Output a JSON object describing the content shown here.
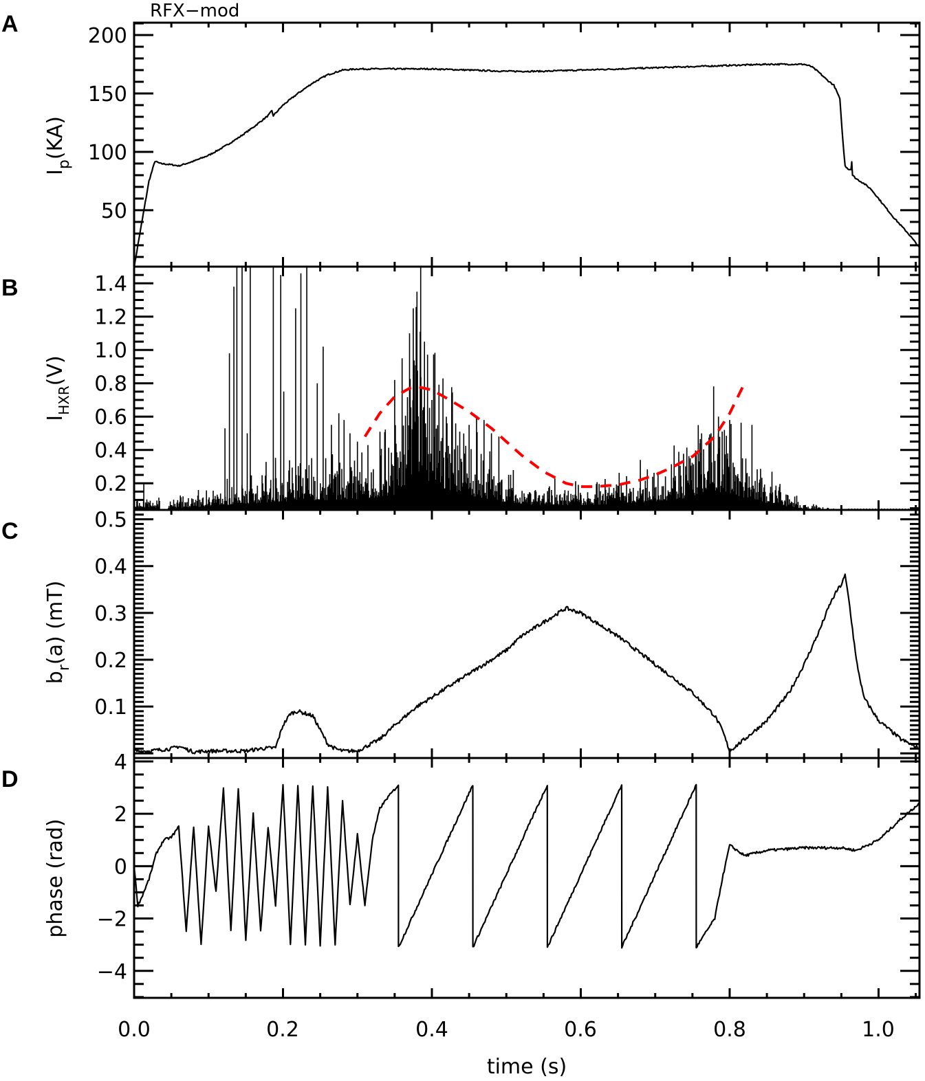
{
  "figure": {
    "title": "RFX−mod",
    "xlabel": "time (s)",
    "x_ticks": [
      "0.0",
      "0.2",
      "0.4",
      "0.6",
      "0.8",
      "1.0"
    ],
    "colors": {
      "trace": "#000000",
      "fit": "#ff0000",
      "background": "#ffffff"
    }
  },
  "panels": [
    {
      "letter": "A",
      "ylabel_main": "I",
      "ylabel_sub": "p",
      "ylabel_rest": "(KA)",
      "y_ticks": [
        "50",
        "100",
        "150",
        "200"
      ]
    },
    {
      "letter": "B",
      "ylabel_main": "I",
      "ylabel_sub": "HXR",
      "ylabel_rest": "(V)",
      "y_ticks": [
        "0.2",
        "0.4",
        "0.6",
        "0.8",
        "1.0",
        "1.2",
        "1.4"
      ]
    },
    {
      "letter": "C",
      "ylabel_main": "b",
      "ylabel_sub": "r",
      "ylabel_rest": "(a)  (mT)",
      "y_ticks": [
        "0.1",
        "0.2",
        "0.3",
        "0.4",
        "0.5"
      ]
    },
    {
      "letter": "D",
      "ylabel_main": "phase  (rad)",
      "ylabel_sub": "",
      "ylabel_rest": "",
      "y_ticks": [
        "−4",
        "−2",
        "0",
        "2",
        "4"
      ]
    }
  ],
  "chart_data": [
    {
      "type": "line",
      "panel": "A",
      "title": "RFX-mod",
      "xlabel": "time (s)",
      "ylabel": "Ip (KA)",
      "xlim": [
        0.0,
        1.055
      ],
      "ylim": [
        1.7,
        210.6
      ],
      "yticks": [
        50,
        100,
        150,
        200
      ],
      "series": [
        {
          "name": "Ip",
          "x": [
            0.0,
            0.005,
            0.02,
            0.028,
            0.035,
            0.05,
            0.06,
            0.08,
            0.1,
            0.12,
            0.14,
            0.16,
            0.18,
            0.185,
            0.187,
            0.2,
            0.22,
            0.24,
            0.26,
            0.28,
            0.3,
            0.35,
            0.4,
            0.45,
            0.5,
            0.55,
            0.6,
            0.65,
            0.7,
            0.75,
            0.8,
            0.85,
            0.9,
            0.91,
            0.92,
            0.93,
            0.94,
            0.945,
            0.948,
            0.952,
            0.955,
            0.96,
            0.963,
            0.964,
            0.965,
            0.97,
            0.98,
            0.99,
            1.0,
            1.02,
            1.04,
            1.055
          ],
          "y": [
            1,
            20,
            75,
            92,
            90,
            89,
            88,
            92,
            97,
            104,
            112,
            121,
            131,
            135,
            131,
            140,
            150,
            159,
            166,
            170,
            171,
            171,
            171,
            170,
            169,
            169,
            170,
            171,
            172,
            173,
            174,
            175,
            175,
            173,
            168,
            162,
            157,
            150,
            145,
            110,
            88,
            85,
            85,
            92,
            80,
            77,
            73,
            68,
            60,
            44,
            30,
            18
          ]
        }
      ]
    },
    {
      "type": "bar",
      "panel": "B",
      "ylabel": "IHXR (V)",
      "xlim": [
        0.0,
        1.055
      ],
      "ylim": [
        0.04,
        1.5
      ],
      "yticks": [
        0.2,
        0.4,
        0.6,
        0.8,
        1.0,
        1.2,
        1.4
      ],
      "envelope": {
        "x": [
          0.0,
          0.05,
          0.1,
          0.15,
          0.2,
          0.25,
          0.3,
          0.35,
          0.37,
          0.38,
          0.4,
          0.45,
          0.5,
          0.55,
          0.6,
          0.65,
          0.7,
          0.75,
          0.78,
          0.8,
          0.85,
          0.9,
          0.95,
          1.0,
          1.055
        ],
        "y": [
          0.08,
          0.07,
          0.1,
          0.14,
          0.18,
          0.2,
          0.22,
          0.28,
          0.55,
          0.72,
          0.45,
          0.28,
          0.15,
          0.12,
          0.12,
          0.14,
          0.18,
          0.25,
          0.35,
          0.3,
          0.15,
          0.06,
          0.04,
          0.04,
          0.04
        ]
      },
      "spikes": {
        "x": [
          0.013,
          0.122,
          0.128,
          0.134,
          0.138,
          0.145,
          0.152,
          0.156,
          0.187,
          0.197,
          0.201,
          0.217,
          0.224,
          0.232,
          0.246,
          0.254,
          0.265,
          0.275,
          0.282,
          0.29,
          0.3,
          0.35,
          0.36,
          0.37,
          0.375,
          0.38,
          0.385,
          0.39,
          0.4,
          0.45,
          0.46,
          0.47,
          0.48,
          0.49,
          0.68,
          0.76,
          0.775,
          0.785,
          0.79,
          0.8,
          0.83
        ],
        "y": [
          0.2,
          0.53,
          0.98,
          1.38,
          1.5,
          1.5,
          0.5,
          1.5,
          1.5,
          1.45,
          0.75,
          1.25,
          1.46,
          1.5,
          0.8,
          1.02,
          0.55,
          0.62,
          0.58,
          0.5,
          0.45,
          0.82,
          0.95,
          1.1,
          1.25,
          1.35,
          1.5,
          1.05,
          0.7,
          0.55,
          0.6,
          0.58,
          0.5,
          0.48,
          0.34,
          0.44,
          0.5,
          0.6,
          0.51,
          0.58,
          0.55
        ]
      },
      "fit": {
        "name": "fit (red dashed)",
        "x": [
          0.31,
          0.33,
          0.35,
          0.37,
          0.38,
          0.4,
          0.42,
          0.45,
          0.48,
          0.5,
          0.52,
          0.55,
          0.58,
          0.6,
          0.62,
          0.65,
          0.68,
          0.7,
          0.72,
          0.75,
          0.78,
          0.8,
          0.82
        ],
        "y": [
          0.48,
          0.62,
          0.72,
          0.77,
          0.78,
          0.76,
          0.71,
          0.63,
          0.53,
          0.45,
          0.37,
          0.27,
          0.2,
          0.18,
          0.18,
          0.19,
          0.22,
          0.25,
          0.29,
          0.36,
          0.48,
          0.62,
          0.8
        ]
      }
    },
    {
      "type": "line",
      "panel": "C",
      "ylabel": "br(a) (mT)",
      "xlim": [
        0.0,
        1.055
      ],
      "ylim": [
        -0.01,
        0.52
      ],
      "yticks": [
        0.1,
        0.2,
        0.3,
        0.4,
        0.5
      ],
      "series": [
        {
          "name": "br(a)",
          "x": [
            0.0,
            0.02,
            0.05,
            0.06,
            0.08,
            0.1,
            0.15,
            0.17,
            0.19,
            0.2,
            0.21,
            0.22,
            0.24,
            0.25,
            0.26,
            0.27,
            0.28,
            0.3,
            0.33,
            0.35,
            0.38,
            0.4,
            0.43,
            0.45,
            0.48,
            0.5,
            0.52,
            0.55,
            0.57,
            0.58,
            0.6,
            0.62,
            0.65,
            0.7,
            0.75,
            0.78,
            0.79,
            0.8,
            0.82,
            0.85,
            0.88,
            0.9,
            0.92,
            0.935,
            0.945,
            0.95,
            0.955,
            0.96,
            0.97,
            0.98,
            1.0,
            1.03,
            1.055
          ],
          "y": [
            0.005,
            0.005,
            0.01,
            0.015,
            0.003,
            0.005,
            0.005,
            0.01,
            0.012,
            0.06,
            0.085,
            0.09,
            0.08,
            0.05,
            0.02,
            0.01,
            0.005,
            0.005,
            0.03,
            0.06,
            0.1,
            0.12,
            0.15,
            0.17,
            0.2,
            0.22,
            0.25,
            0.28,
            0.3,
            0.31,
            0.3,
            0.28,
            0.25,
            0.19,
            0.13,
            0.08,
            0.05,
            0.005,
            0.03,
            0.07,
            0.13,
            0.19,
            0.26,
            0.32,
            0.35,
            0.36,
            0.38,
            0.33,
            0.2,
            0.12,
            0.07,
            0.03,
            0.01
          ]
        }
      ]
    },
    {
      "type": "line",
      "panel": "D",
      "ylabel": "phase (rad)",
      "xlim": [
        0.0,
        1.055
      ],
      "ylim": [
        -5.03,
        4.13
      ],
      "yticks": [
        -4,
        -2,
        0,
        2,
        4
      ],
      "series": [
        {
          "name": "phase",
          "x": [
            0.0,
            0.005,
            0.01,
            0.02,
            0.03,
            0.04,
            0.05,
            0.06,
            0.07,
            0.08,
            0.09,
            0.1,
            0.11,
            0.12,
            0.13,
            0.14,
            0.15,
            0.16,
            0.17,
            0.18,
            0.19,
            0.2,
            0.21,
            0.22,
            0.23,
            0.24,
            0.25,
            0.26,
            0.27,
            0.28,
            0.29,
            0.3,
            0.31,
            0.32,
            0.33,
            0.34,
            0.355,
            0.3551,
            0.455,
            0.4551,
            0.555,
            0.5551,
            0.655,
            0.6551,
            0.755,
            0.7551,
            0.78,
            0.79,
            0.8,
            0.82,
            0.85,
            0.9,
            0.95,
            0.97,
            1.0,
            1.03,
            1.055
          ],
          "y": [
            0.0,
            -1.5,
            -1.2,
            -0.5,
            0.5,
            1.0,
            1.1,
            1.5,
            -2.5,
            1.5,
            -3.0,
            1.5,
            -1.0,
            3.0,
            -2.5,
            3.0,
            -2.8,
            2.0,
            -2.5,
            1.5,
            -1.5,
            3.1,
            -3.0,
            3.1,
            -3.0,
            3.1,
            -3.0,
            3.0,
            -3.0,
            2.5,
            -1.5,
            1.2,
            -1.5,
            1.0,
            2.2,
            2.6,
            3.1,
            -3.1,
            3.1,
            -3.1,
            3.1,
            -3.1,
            3.1,
            -3.1,
            3.1,
            -3.1,
            -2.0,
            -0.5,
            0.8,
            0.4,
            0.6,
            0.7,
            0.7,
            0.6,
            1.0,
            1.8,
            2.4
          ]
        }
      ]
    }
  ]
}
